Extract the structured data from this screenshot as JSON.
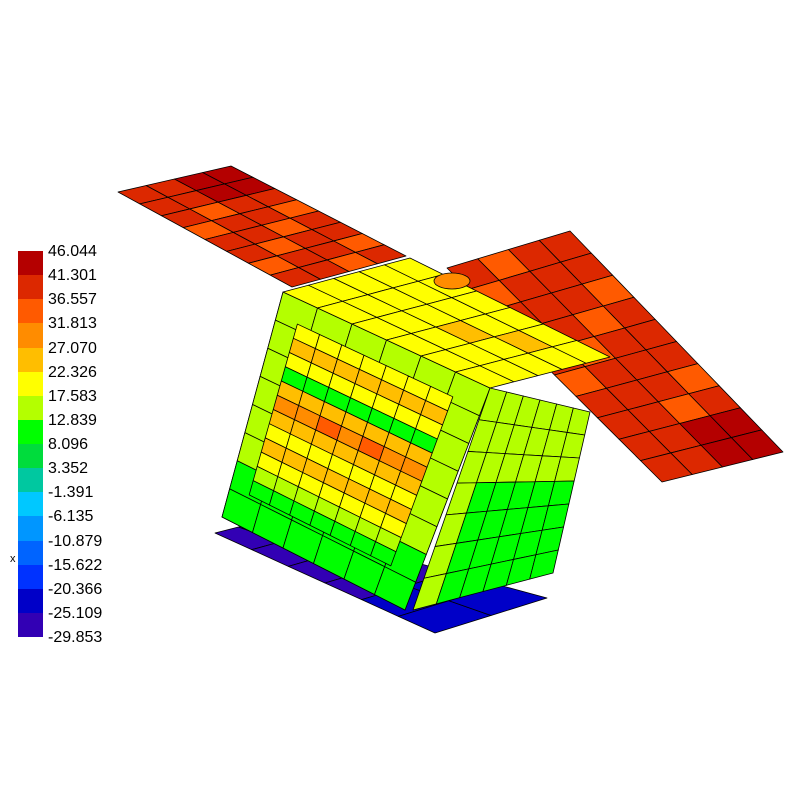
{
  "legend": {
    "labels": [
      "46.044",
      "41.301",
      "36.557",
      "31.813",
      "27.070",
      "22.326",
      "17.583",
      "12.839",
      "8.096",
      "3.352",
      "-1.391",
      "-6.135",
      "-10.879",
      "-15.622",
      "-20.366",
      "-25.109",
      "-29.853"
    ],
    "colors": [
      "#b40000",
      "#dc2800",
      "#ff5a00",
      "#ff8c00",
      "#ffbe00",
      "#ffff00",
      "#b4ff00",
      "#00ff00",
      "#00dc3c",
      "#00c8a0",
      "#00c8ff",
      "#0096ff",
      "#0064ff",
      "#0032ff",
      "#0000c8",
      "#3200b4"
    ]
  },
  "axis_label": "x"
}
